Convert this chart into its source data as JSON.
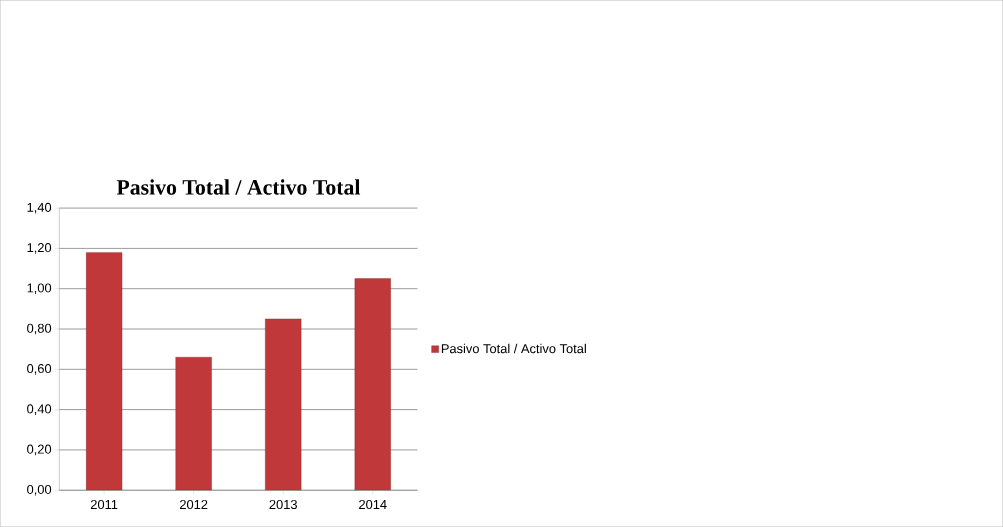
{
  "chart_data": {
    "type": "bar",
    "title": "Pasivo Total / Activo Total",
    "categories": [
      "2011",
      "2012",
      "2013",
      "2014"
    ],
    "series": [
      {
        "name": "Pasivo Total / Activo Total",
        "color": "#c0383a",
        "values": [
          1.18,
          0.66,
          0.85,
          1.05
        ]
      }
    ],
    "ylim": [
      0,
      1.4
    ],
    "yticks": [
      {
        "value": 0,
        "label": "0,00"
      },
      {
        "value": 0.2,
        "label": "0,20"
      },
      {
        "value": 0.4,
        "label": "0,40"
      },
      {
        "value": 0.6,
        "label": "0,60"
      },
      {
        "value": 0.8,
        "label": "0,80"
      },
      {
        "value": 1.0,
        "label": "1,00"
      },
      {
        "value": 1.2,
        "label": "1,20"
      },
      {
        "value": 1.4,
        "label": "1,40"
      }
    ],
    "grid": "y",
    "legend": "right"
  }
}
